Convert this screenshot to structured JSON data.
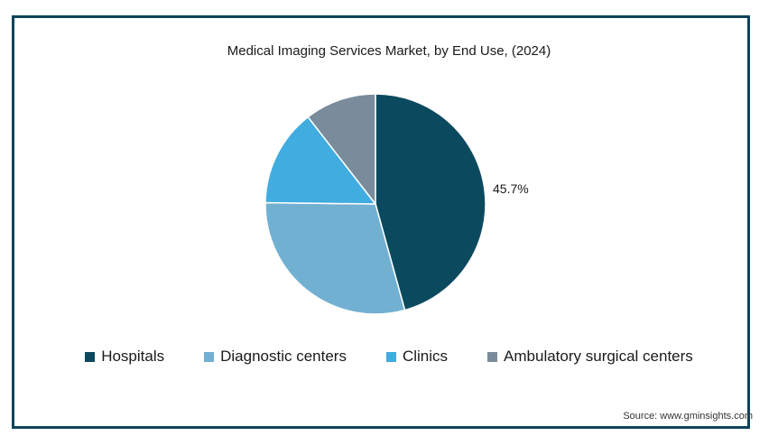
{
  "chart_data": {
    "type": "pie",
    "title": "Medical Imaging Services Market, by End Use, (2024)",
    "categories": [
      "Hospitals",
      "Diagnostic centers",
      "Clinics",
      "Ambulatory surgical centers"
    ],
    "values": [
      45.7,
      29.5,
      14.3,
      10.5
    ],
    "colors": [
      "#0b4a5e",
      "#72b0d2",
      "#41acdf",
      "#7a8c9b"
    ],
    "data_labels": [
      "45.7%",
      "",
      "",
      ""
    ],
    "legend_position": "bottom"
  },
  "source": "Source: www.gminsights.com"
}
